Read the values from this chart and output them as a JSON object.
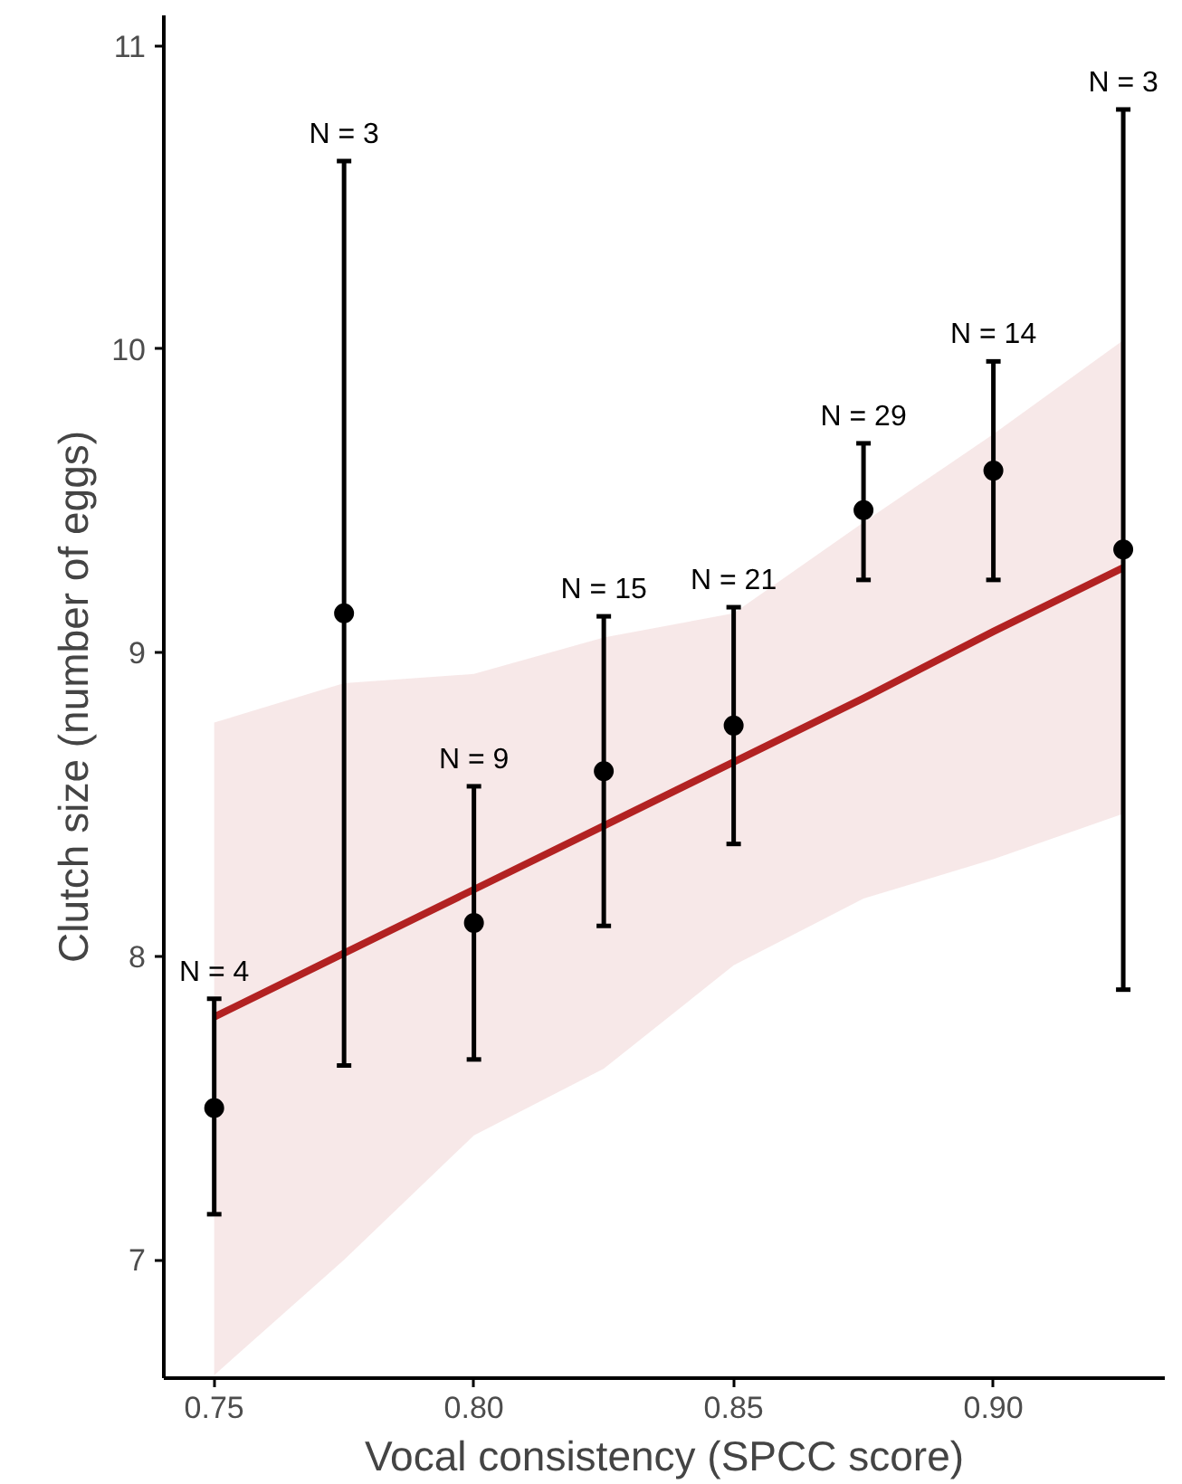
{
  "chart_data": {
    "type": "scatter",
    "xlabel": "Vocal consistency (SPCC score)",
    "ylabel": "Clutch size (number of eggs)",
    "xlim": [
      0.7403,
      0.933
    ],
    "ylim": [
      6.61,
      11.1
    ],
    "xticks": [
      {
        "value": 0.75,
        "label": "0.75"
      },
      {
        "value": 0.8,
        "label": "0.80"
      },
      {
        "value": 0.85,
        "label": "0.85"
      },
      {
        "value": 0.9,
        "label": "0.90"
      }
    ],
    "yticks": [
      7,
      8,
      9,
      10,
      11
    ],
    "grid": false,
    "series": [
      {
        "type": "line",
        "color": "#b22222",
        "marker": "none",
        "line_style": "solid",
        "x": [
          0.75,
          0.775,
          0.8,
          0.825,
          0.85,
          0.875,
          0.9,
          0.925
        ],
        "values": [
          7.8,
          8.01,
          8.22,
          8.43,
          8.64,
          8.85,
          9.07,
          9.28
        ],
        "lower": [
          6.62,
          7.0,
          7.41,
          7.63,
          7.97,
          8.19,
          8.32,
          8.47
        ],
        "upper": [
          8.77,
          8.9,
          8.93,
          9.05,
          9.13,
          9.43,
          9.72,
          10.03
        ]
      },
      {
        "color": "#000000",
        "marker": "circle",
        "x": [
          0.75,
          0.775,
          0.8,
          0.825,
          0.85,
          0.875,
          0.9,
          0.925
        ],
        "values": [
          7.5,
          9.13,
          8.11,
          8.61,
          8.76,
          9.47,
          9.6,
          9.34
        ],
        "errors": [
          [
            7.15,
            7.86
          ],
          [
            7.64,
            10.62
          ],
          [
            7.66,
            8.56
          ],
          [
            8.1,
            9.12
          ],
          [
            8.37,
            9.15
          ],
          [
            9.24,
            9.69
          ],
          [
            9.24,
            9.96
          ],
          [
            7.89,
            10.79
          ]
        ]
      }
    ],
    "annotations": [
      {
        "text": "N = 4",
        "x": 0.75,
        "y": 7.86
      },
      {
        "text": "N = 3",
        "x": 0.775,
        "y": 10.62
      },
      {
        "text": "N = 9",
        "x": 0.8,
        "y": 8.56
      },
      {
        "text": "N = 15",
        "x": 0.825,
        "y": 9.12
      },
      {
        "text": "N = 21",
        "x": 0.85,
        "y": 9.15
      },
      {
        "text": "N = 29",
        "x": 0.875,
        "y": 9.69
      },
      {
        "text": "N = 14",
        "x": 0.9,
        "y": 9.96
      },
      {
        "text": "N = 3",
        "x": 0.925,
        "y": 10.79
      }
    ]
  }
}
